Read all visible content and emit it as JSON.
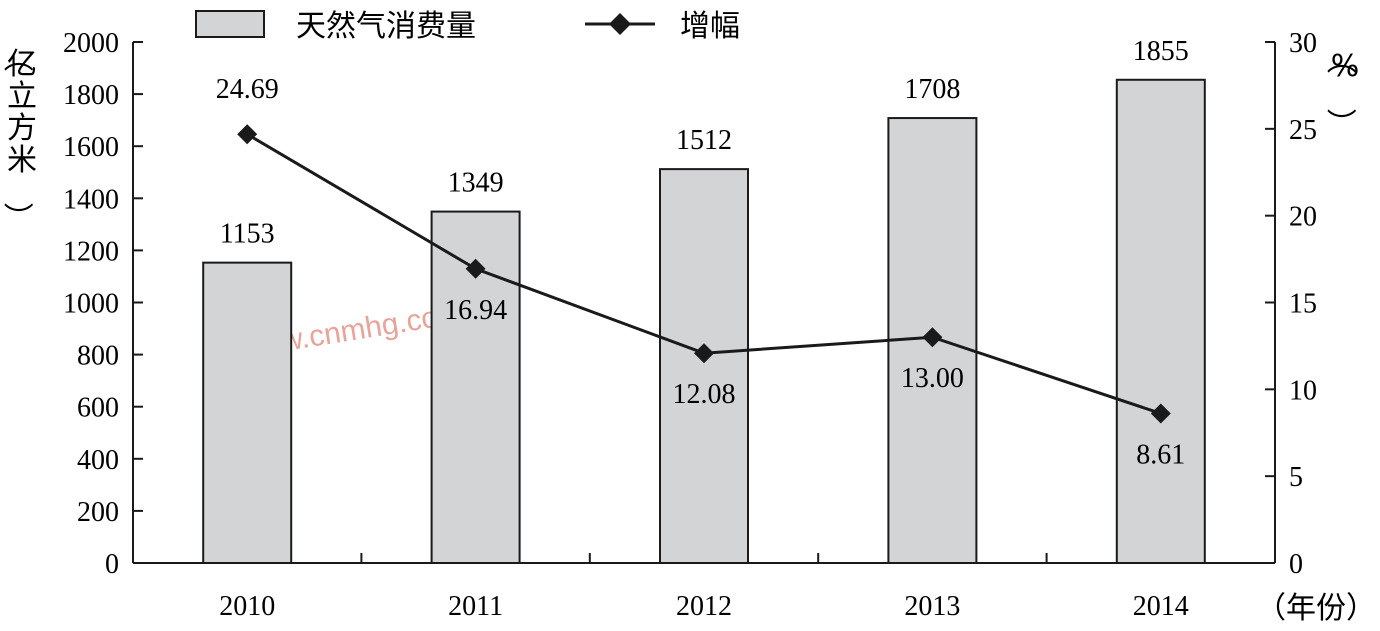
{
  "chart_data": {
    "type": "bar+line",
    "categories": [
      "2010",
      "2011",
      "2012",
      "2013",
      "2014"
    ],
    "series": [
      {
        "name": "天然气消费量",
        "type": "bar",
        "axis": "left",
        "values": [
          1153,
          1349,
          1512,
          1708,
          1855
        ],
        "labels": [
          "1153",
          "1349",
          "1512",
          "1708",
          "1855"
        ]
      },
      {
        "name": "增幅",
        "type": "line",
        "axis": "right",
        "values": [
          24.69,
          16.94,
          12.08,
          13.0,
          8.61
        ],
        "labels": [
          "24.69",
          "16.94",
          "12.08",
          "13.00",
          "8.61"
        ]
      }
    ],
    "ylabel_left": "（亿立方米）",
    "ylabel_right": "（%）",
    "xlabel": "（年份）",
    "ylim_left": [
      0,
      2000
    ],
    "ylim_right": [
      0,
      30
    ],
    "yticks_left": [
      "0",
      "200",
      "400",
      "600",
      "800",
      "1000",
      "1200",
      "1400",
      "1600",
      "1800",
      "2000"
    ],
    "yticks_right": [
      "0",
      "5",
      "10",
      "15",
      "20",
      "25",
      "30"
    ],
    "legend": [
      "天然气消费量",
      "增幅"
    ],
    "legend_position": "top",
    "grid": false,
    "colors": {
      "bar_fill": "#d3d4d6",
      "bar_stroke": "#1a1a1a",
      "line": "#1a1a1a",
      "marker": "#1a1a1a"
    },
    "watermark": "www.cnmhg.com"
  }
}
